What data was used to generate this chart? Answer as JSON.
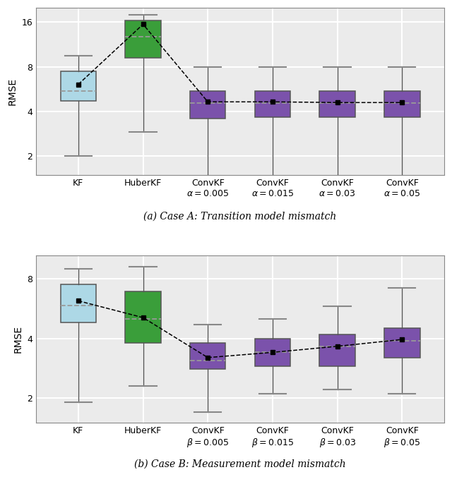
{
  "panel_a": {
    "caption": "(a) Case A: Transition model mismatch",
    "ylabel": "RMSE",
    "xlabels": [
      "KF",
      "HuberKF",
      "ConvKF\n$\\alpha = 0.005$",
      "ConvKF\n$\\alpha = 0.015$",
      "ConvKF\n$\\alpha = 0.03$",
      "ConvKF\n$\\alpha = 0.05$"
    ],
    "colors": [
      "#add8e6",
      "#3a9e3a",
      "#7b52ab",
      "#7b52ab",
      "#7b52ab",
      "#7b52ab"
    ],
    "boxes": [
      {
        "q1": 4.7,
        "median": 5.5,
        "q3": 7.5,
        "whislo": 2.0,
        "whishi": 9.5,
        "mean": 6.1
      },
      {
        "q1": 9.2,
        "median": 12.8,
        "q3": 16.5,
        "whislo": 2.9,
        "whishi": 18.0,
        "mean": 15.5
      },
      {
        "q1": 3.6,
        "median": 4.55,
        "q3": 5.5,
        "whislo": 1.4,
        "whishi": 8.0,
        "mean": 4.65
      },
      {
        "q1": 3.65,
        "median": 4.55,
        "q3": 5.5,
        "whislo": 1.4,
        "whishi": 8.0,
        "mean": 4.65
      },
      {
        "q1": 3.65,
        "median": 4.55,
        "q3": 5.5,
        "whislo": 1.4,
        "whishi": 8.0,
        "mean": 4.6
      },
      {
        "q1": 3.65,
        "median": 4.55,
        "q3": 5.5,
        "whislo": 1.4,
        "whishi": 8.0,
        "mean": 4.6
      }
    ],
    "ylim_log": [
      1.5,
      20.0
    ],
    "yticks": [
      2,
      4,
      8,
      16
    ]
  },
  "panel_b": {
    "caption": "(b) Case B: Measurement model mismatch",
    "ylabel": "RMSE",
    "xlabels": [
      "KF",
      "HuberKF",
      "ConvKF\n$\\beta = 0.005$",
      "ConvKF\n$\\beta = 0.015$",
      "ConvKF\n$\\beta = 0.03$",
      "ConvKF\n$\\beta = 0.05$"
    ],
    "colors": [
      "#add8e6",
      "#3a9e3a",
      "#7b52ab",
      "#7b52ab",
      "#7b52ab",
      "#7b52ab"
    ],
    "boxes": [
      {
        "q1": 4.8,
        "median": 5.85,
        "q3": 7.5,
        "whislo": 1.9,
        "whishi": 9.0,
        "mean": 6.2
      },
      {
        "q1": 3.8,
        "median": 5.0,
        "q3": 6.9,
        "whislo": 2.3,
        "whishi": 9.2,
        "mean": 5.1
      },
      {
        "q1": 2.8,
        "median": 3.1,
        "q3": 3.8,
        "whislo": 1.7,
        "whishi": 4.7,
        "mean": 3.2
      },
      {
        "q1": 2.9,
        "median": 3.4,
        "q3": 4.0,
        "whislo": 2.1,
        "whishi": 5.0,
        "mean": 3.4
      },
      {
        "q1": 2.9,
        "median": 3.65,
        "q3": 4.2,
        "whislo": 2.2,
        "whishi": 5.8,
        "mean": 3.65
      },
      {
        "q1": 3.2,
        "median": 3.9,
        "q3": 4.5,
        "whislo": 2.1,
        "whishi": 7.2,
        "mean": 3.95
      }
    ],
    "ylim_log": [
      1.5,
      10.5
    ],
    "yticks": [
      2,
      4,
      8
    ]
  },
  "bg_color": "#ebebeb",
  "grid_color": "#ffffff",
  "box_edge_color": "#555555",
  "median_color": "#999999",
  "whisker_cap_color": "#888888",
  "mean_marker": "s",
  "mean_markersize": 4.5,
  "mean_line_style": "--",
  "median_line_style": "--"
}
